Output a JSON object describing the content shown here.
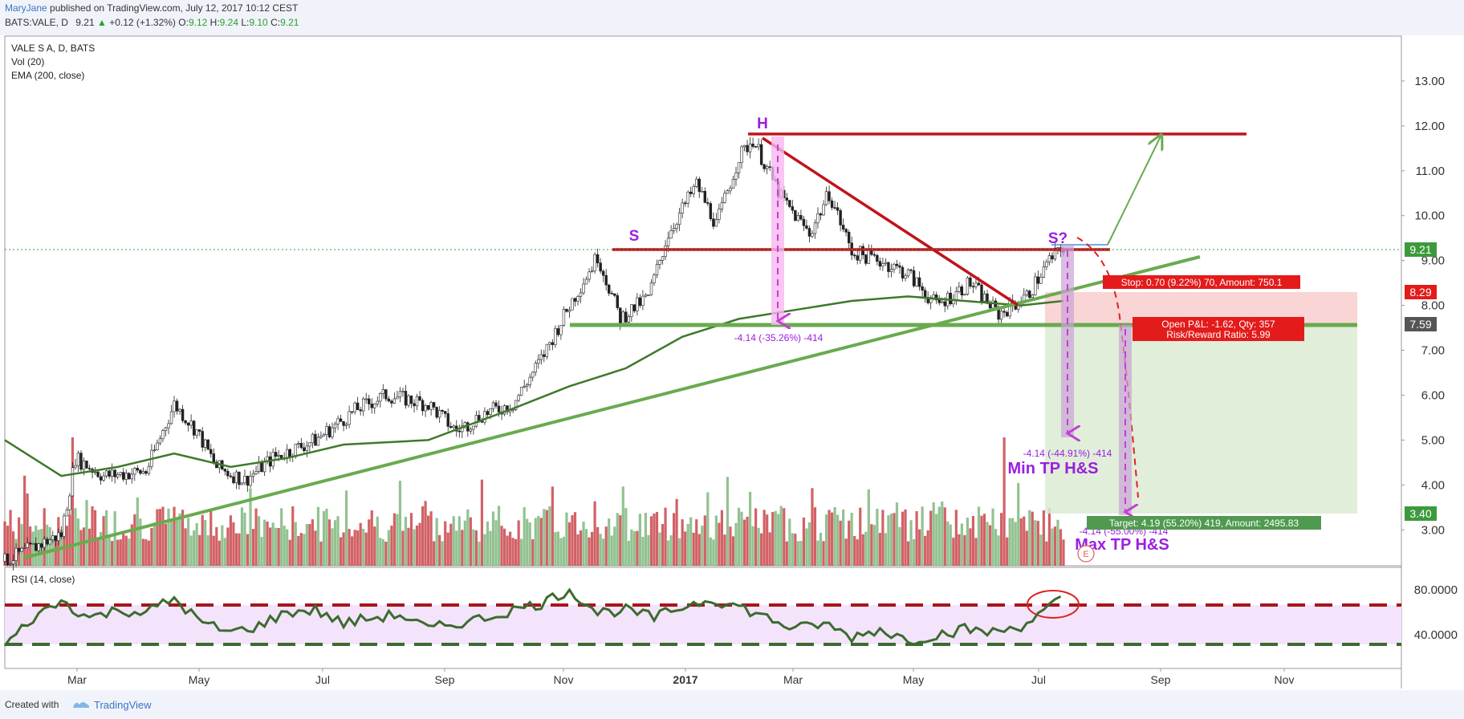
{
  "header": {
    "author": "MaryJane",
    "published": "published on TradingView.com, July 12, 2017 10:12 CEST",
    "symbol_line": "BATS:VALE, D",
    "last": "9.21",
    "change_arrow": "▲",
    "change": "+0.12 (+1.32%)",
    "o_label": "O:",
    "o_value": "9.12",
    "h_label": "H:",
    "h_value": "9.24",
    "l_label": "L:",
    "l_value": "9.10",
    "c_label": "C:",
    "c_value": "9.21"
  },
  "legend": {
    "line1": "VALE S A, D, BATS",
    "line2": "Vol (20)",
    "line3": "EMA (200, close)"
  },
  "footer": {
    "created_with": "Created with",
    "brand": "TradingView"
  },
  "colors": {
    "up": "#7fb77e",
    "down": "#c9464b",
    "ema": "#3d7a2a",
    "trend_green": "#6aaa4f",
    "resistance_red": "#c0141b",
    "pattern_purple": "#9b1ee0",
    "rsi_line": "#3d6b2f",
    "rsi_band": "#f3e4fb"
  },
  "chart_data": {
    "type": "line",
    "title": "VALE S A, D, BATS",
    "y_range": [
      2.2,
      14.0
    ],
    "y_ticks": [
      "13.00",
      "12.00",
      "11.00",
      "10.00",
      "9.00",
      "8.00",
      "7.00",
      "6.00",
      "5.00",
      "4.00",
      "3.00"
    ],
    "x_labels": [
      "Mar",
      "May",
      "Jul",
      "Sep",
      "Nov",
      "2017",
      "Mar",
      "May",
      "Jul",
      "Sep",
      "Nov"
    ],
    "price_path": [
      [
        0,
        2.3
      ],
      [
        20,
        2.9
      ],
      [
        25,
        4.6
      ],
      [
        35,
        4.2
      ],
      [
        50,
        4.3
      ],
      [
        60,
        5.8
      ],
      [
        68,
        5.2
      ],
      [
        75,
        4.4
      ],
      [
        85,
        4.1
      ],
      [
        95,
        4.6
      ],
      [
        110,
        5.0
      ],
      [
        125,
        5.7
      ],
      [
        135,
        6.0
      ],
      [
        150,
        5.8
      ],
      [
        160,
        5.2
      ],
      [
        170,
        5.6
      ],
      [
        180,
        5.8
      ],
      [
        190,
        6.8
      ],
      [
        200,
        8.0
      ],
      [
        210,
        9.1
      ],
      [
        218,
        7.7
      ],
      [
        228,
        8.2
      ],
      [
        235,
        9.6
      ],
      [
        245,
        10.7
      ],
      [
        252,
        9.8
      ],
      [
        260,
        11.3
      ],
      [
        265,
        11.7
      ],
      [
        275,
        10.4
      ],
      [
        285,
        9.6
      ],
      [
        292,
        10.5
      ],
      [
        300,
        9.2
      ],
      [
        310,
        9.0
      ],
      [
        320,
        8.7
      ],
      [
        330,
        8.0
      ],
      [
        342,
        8.5
      ],
      [
        352,
        7.8
      ],
      [
        362,
        8.2
      ],
      [
        370,
        9.0
      ],
      [
        375,
        9.3
      ]
    ],
    "ema_path": [
      [
        0,
        5.0
      ],
      [
        20,
        4.2
      ],
      [
        40,
        4.4
      ],
      [
        60,
        4.7
      ],
      [
        80,
        4.4
      ],
      [
        100,
        4.6
      ],
      [
        120,
        4.9
      ],
      [
        150,
        5.0
      ],
      [
        180,
        5.7
      ],
      [
        200,
        6.2
      ],
      [
        220,
        6.6
      ],
      [
        240,
        7.3
      ],
      [
        260,
        7.7
      ],
      [
        280,
        7.9
      ],
      [
        300,
        8.1
      ],
      [
        320,
        8.2
      ],
      [
        340,
        8.1
      ],
      [
        360,
        8.0
      ],
      [
        375,
        8.1
      ]
    ],
    "current_price": "9.21",
    "price_labels": [
      "9.21",
      "8.29",
      "7.59",
      "3.40"
    ],
    "annotations": {
      "head": "H",
      "left_shoulder": "S",
      "right_shoulder": "S?",
      "measure_left": "-4.14 (-35.26%) -414",
      "measure_min": "-4.14 (-44.91%) -414",
      "measure_max": "-4.14 (-55.00%) -414",
      "min_tp": "Min TP H&S",
      "max_tp": "Max TP H&S",
      "stop_box": "Stop: 0.70 (9.22%) 70, Amount: 750.1",
      "pnl_box": "Open P&L: -1.62, Qty: 357",
      "rr_box": "Risk/Reward Ratio: 5.99",
      "target_box": "Target: 4.19 (55.20%) 419, Amount: 2495.83",
      "event_marker": "E"
    },
    "rsi": {
      "label": "RSI (14, close)",
      "ticks": [
        "80.0000",
        "40.0000"
      ],
      "y_range": [
        10,
        100
      ],
      "upper": 70,
      "lower": 30,
      "path": [
        [
          0,
          30
        ],
        [
          10,
          55
        ],
        [
          20,
          70
        ],
        [
          30,
          55
        ],
        [
          40,
          62
        ],
        [
          50,
          60
        ],
        [
          60,
          72
        ],
        [
          70,
          50
        ],
        [
          80,
          42
        ],
        [
          90,
          48
        ],
        [
          100,
          60
        ],
        [
          110,
          62
        ],
        [
          120,
          50
        ],
        [
          130,
          55
        ],
        [
          140,
          58
        ],
        [
          150,
          45
        ],
        [
          160,
          50
        ],
        [
          170,
          55
        ],
        [
          180,
          62
        ],
        [
          190,
          68
        ],
        [
          200,
          80
        ],
        [
          210,
          60
        ],
        [
          220,
          62
        ],
        [
          230,
          55
        ],
        [
          240,
          65
        ],
        [
          250,
          72
        ],
        [
          260,
          65
        ],
        [
          270,
          55
        ],
        [
          280,
          45
        ],
        [
          290,
          50
        ],
        [
          300,
          38
        ],
        [
          310,
          45
        ],
        [
          320,
          35
        ],
        [
          330,
          40
        ],
        [
          340,
          45
        ],
        [
          350,
          42
        ],
        [
          360,
          48
        ],
        [
          368,
          60
        ],
        [
          372,
          68
        ],
        [
          376,
          72
        ]
      ]
    }
  }
}
